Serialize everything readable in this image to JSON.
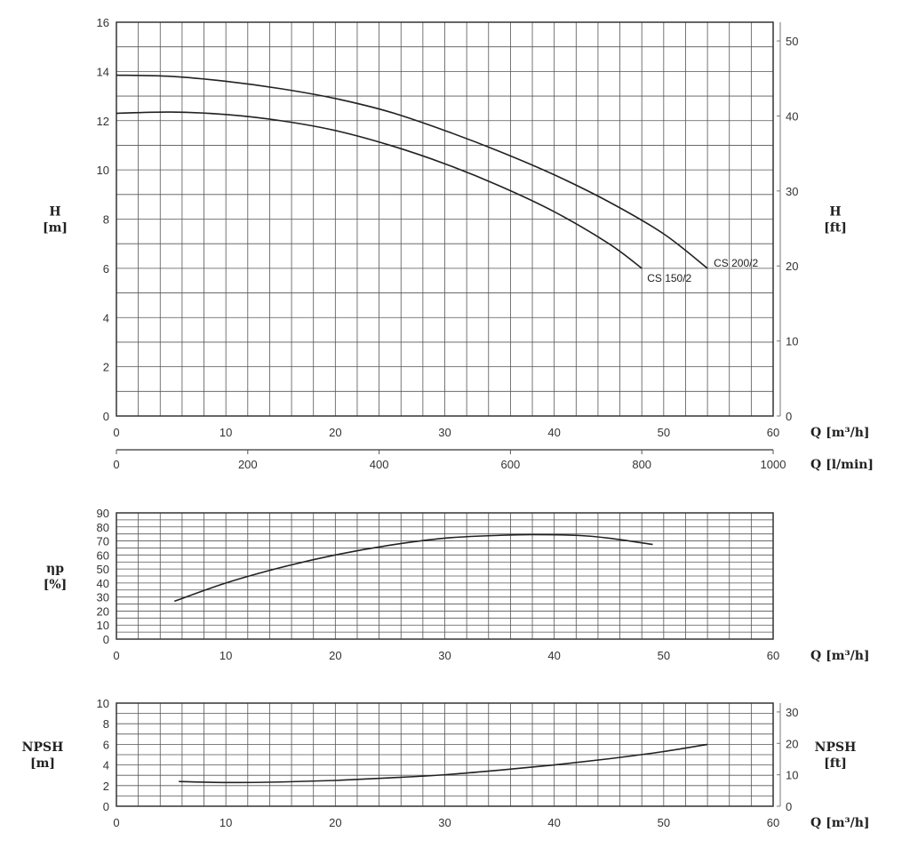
{
  "chart_data": [
    {
      "type": "line",
      "ylabel": "H",
      "ylabel_unit": "[m]",
      "y2label": "H",
      "y2label_unit": "[ft]",
      "xlabel": "Q [m³/h]",
      "x2label": "Q [l/min]",
      "xlim": [
        0,
        60
      ],
      "ylim": [
        0,
        16
      ],
      "y2lim_ft": [
        0,
        52.5
      ],
      "x2lim": [
        0,
        1000
      ],
      "xticks": [
        0,
        10,
        20,
        30,
        40,
        50,
        60
      ],
      "x2ticks": [
        0,
        200,
        400,
        600,
        800,
        1000
      ],
      "yticks": [
        0,
        2,
        4,
        6,
        8,
        10,
        12,
        14,
        16
      ],
      "y2ticks": [
        0,
        10,
        20,
        30,
        40,
        50
      ],
      "grid": true,
      "series": [
        {
          "name": "CS 200/2",
          "x": [
            0,
            5,
            10,
            15,
            20,
            25,
            30,
            35,
            40,
            45,
            50,
            54
          ],
          "y": [
            13.85,
            13.8,
            13.6,
            13.3,
            12.9,
            12.35,
            11.6,
            10.75,
            9.8,
            8.7,
            7.4,
            6.0
          ]
        },
        {
          "name": "CS 150/2",
          "x": [
            0,
            5,
            10,
            15,
            20,
            25,
            30,
            35,
            40,
            45,
            48
          ],
          "y": [
            12.3,
            12.35,
            12.25,
            12.0,
            11.6,
            11.0,
            10.25,
            9.35,
            8.3,
            7.0,
            6.0
          ]
        }
      ]
    },
    {
      "type": "line",
      "ylabel": "ηp",
      "ylabel_unit": "[%]",
      "xlabel": "Q [m³/h]",
      "xlim": [
        0,
        60
      ],
      "ylim": [
        0,
        90
      ],
      "xticks": [
        0,
        10,
        20,
        30,
        40,
        50,
        60
      ],
      "yticks": [
        0,
        10,
        20,
        30,
        40,
        50,
        60,
        70,
        80,
        90
      ],
      "grid": true,
      "series": [
        {
          "x": [
            5.3,
            10,
            15,
            20,
            25,
            30,
            35,
            38,
            42,
            45,
            49
          ],
          "y": [
            27,
            40,
            51,
            60,
            67,
            72,
            74,
            74.5,
            74,
            72,
            67.5
          ]
        }
      ]
    },
    {
      "type": "line",
      "ylabel": "NPSH",
      "ylabel_unit": "[m]",
      "y2label": "NPSH",
      "y2label_unit": "[ft]",
      "xlabel": "Q [m³/h]",
      "xlim": [
        0,
        60
      ],
      "ylim": [
        0,
        10
      ],
      "y2lim_ft": [
        0,
        32.8
      ],
      "xticks": [
        0,
        10,
        20,
        30,
        40,
        50,
        60
      ],
      "yticks": [
        0,
        2,
        4,
        6,
        8,
        10
      ],
      "y2ticks": [
        0,
        10,
        20,
        30
      ],
      "grid": true,
      "series": [
        {
          "x": [
            5.7,
            10,
            15,
            20,
            25,
            30,
            35,
            40,
            45,
            50,
            54
          ],
          "y": [
            2.4,
            2.3,
            2.35,
            2.5,
            2.75,
            3.05,
            3.5,
            4.0,
            4.6,
            5.3,
            6.0
          ]
        }
      ]
    }
  ]
}
